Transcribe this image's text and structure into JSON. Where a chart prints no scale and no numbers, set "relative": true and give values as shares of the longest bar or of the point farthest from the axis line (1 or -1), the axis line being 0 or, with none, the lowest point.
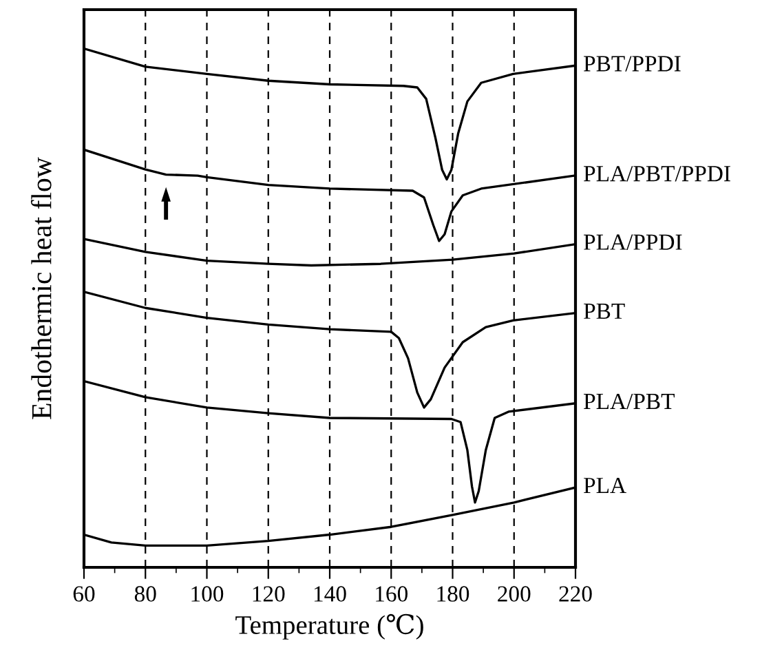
{
  "chart_data": {
    "type": "line",
    "relative": true,
    "xlabel": "Temperature (℃)",
    "ylabel": "Endothermic heat flow",
    "xlim": [
      60,
      220
    ],
    "xticks": [
      60,
      {
        "value": 70,
        "label": null
      },
      80,
      {
        "value": 90,
        "label": null
      },
      100,
      {
        "value": 110,
        "label": null
      },
      120,
      {
        "value": 130,
        "label": null
      },
      140,
      {
        "value": 150,
        "label": null
      },
      160,
      {
        "value": 170,
        "label": null
      },
      180,
      {
        "value": 190,
        "label": null
      },
      200,
      {
        "value": 210,
        "label": null
      },
      220
    ],
    "grid": "x",
    "line_style": "solid",
    "marker": "none",
    "tick_labels": "x",
    "series": [
      {
        "name": "PBT/PPDI",
        "color": "#000000",
        "x": [
          60,
          80,
          100,
          120,
          140,
          164,
          168.5,
          171.4,
          174.4,
          176.6,
          178.1,
          179.6,
          181.8,
          184.8,
          189.3,
          199.7,
          219.7
        ],
        "values": [
          1.0,
          0.965,
          0.951,
          0.938,
          0.931,
          0.928,
          0.925,
          0.903,
          0.828,
          0.766,
          0.748,
          0.766,
          0.836,
          0.898,
          0.934,
          0.951,
          0.967
        ]
      },
      {
        "name": "PLA/PBT/PPDI",
        "color": "#000000",
        "x": [
          60,
          80,
          86.7,
          97,
          100,
          120,
          140,
          167,
          170.7,
          173.7,
          175.6,
          177.4,
          179.6,
          183.3,
          189.3,
          219.7
        ],
        "values": [
          0.805,
          0.767,
          0.757,
          0.755,
          0.752,
          0.737,
          0.73,
          0.726,
          0.713,
          0.66,
          0.629,
          0.642,
          0.686,
          0.717,
          0.73,
          0.755
        ]
      },
      {
        "name": "PLA/PPDI",
        "color": "#000000",
        "x": [
          60,
          80,
          100,
          120,
          134,
          156.6,
          180,
          200,
          220
        ],
        "values": [
          0.633,
          0.608,
          0.591,
          0.585,
          0.582,
          0.585,
          0.593,
          0.605,
          0.623
        ]
      },
      {
        "name": "PBT",
        "color": "#000000",
        "x": [
          60,
          80,
          100,
          120,
          140,
          160,
          162.5,
          165.5,
          168.5,
          170.7,
          172.9,
          177.4,
          183.3,
          190.8,
          199.7,
          219.7
        ],
        "values": [
          0.531,
          0.5,
          0.481,
          0.468,
          0.459,
          0.454,
          0.442,
          0.403,
          0.337,
          0.308,
          0.324,
          0.385,
          0.434,
          0.463,
          0.476,
          0.49
        ]
      },
      {
        "name": "PLA/PBT",
        "color": "#000000",
        "x": [
          60,
          80,
          100,
          120,
          140,
          179.6,
          182.6,
          184.8,
          186.3,
          187.3,
          188.5,
          190.8,
          193.7,
          198.2,
          219.7
        ],
        "values": [
          0.359,
          0.328,
          0.308,
          0.297,
          0.288,
          0.286,
          0.28,
          0.226,
          0.156,
          0.125,
          0.147,
          0.226,
          0.288,
          0.3,
          0.316
        ]
      },
      {
        "name": "PLA",
        "color": "#000000",
        "x": [
          60,
          68.9,
          80,
          100,
          120,
          140,
          160,
          180,
          200,
          220
        ],
        "values": [
          0.063,
          0.048,
          0.042,
          0.042,
          0.051,
          0.063,
          0.078,
          0.101,
          0.125,
          0.154
        ]
      }
    ]
  }
}
